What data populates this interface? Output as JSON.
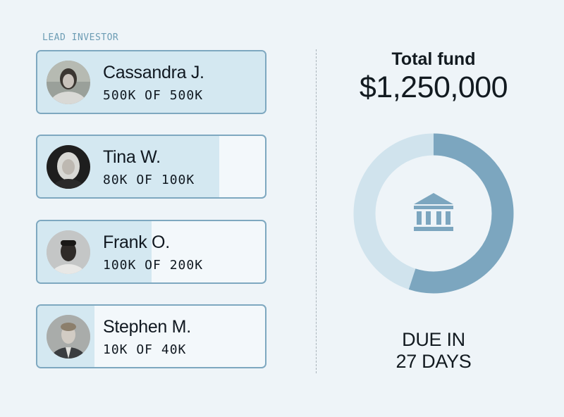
{
  "lead_label": "LEAD INVESTOR",
  "investors": [
    {
      "name": "Cassandra J.",
      "amount_text": "500K OF 500K",
      "raised": 500,
      "goal": 500
    },
    {
      "name": "Tina W.",
      "amount_text": "80K OF 100K",
      "raised": 80,
      "goal": 100
    },
    {
      "name": "Frank O.",
      "amount_text": "100K OF 200K",
      "raised": 100,
      "goal": 200
    },
    {
      "name": "Stephen M.",
      "amount_text": "10K OF 40K",
      "raised": 10,
      "goal": 40
    }
  ],
  "fund": {
    "title": "Total fund",
    "amount": "$1,250,000",
    "progress_fraction": 0.55
  },
  "due": {
    "line1": "DUE IN",
    "line2": "27 DAYS"
  },
  "colors": {
    "card_border": "#7ea8c0",
    "card_fill": "#d4e8f1",
    "donut_filled": "#7ca6bf",
    "donut_remaining": "#d0e3ed",
    "icon": "#7ca6bf"
  },
  "icons": {
    "fund_center": "bank-icon"
  }
}
